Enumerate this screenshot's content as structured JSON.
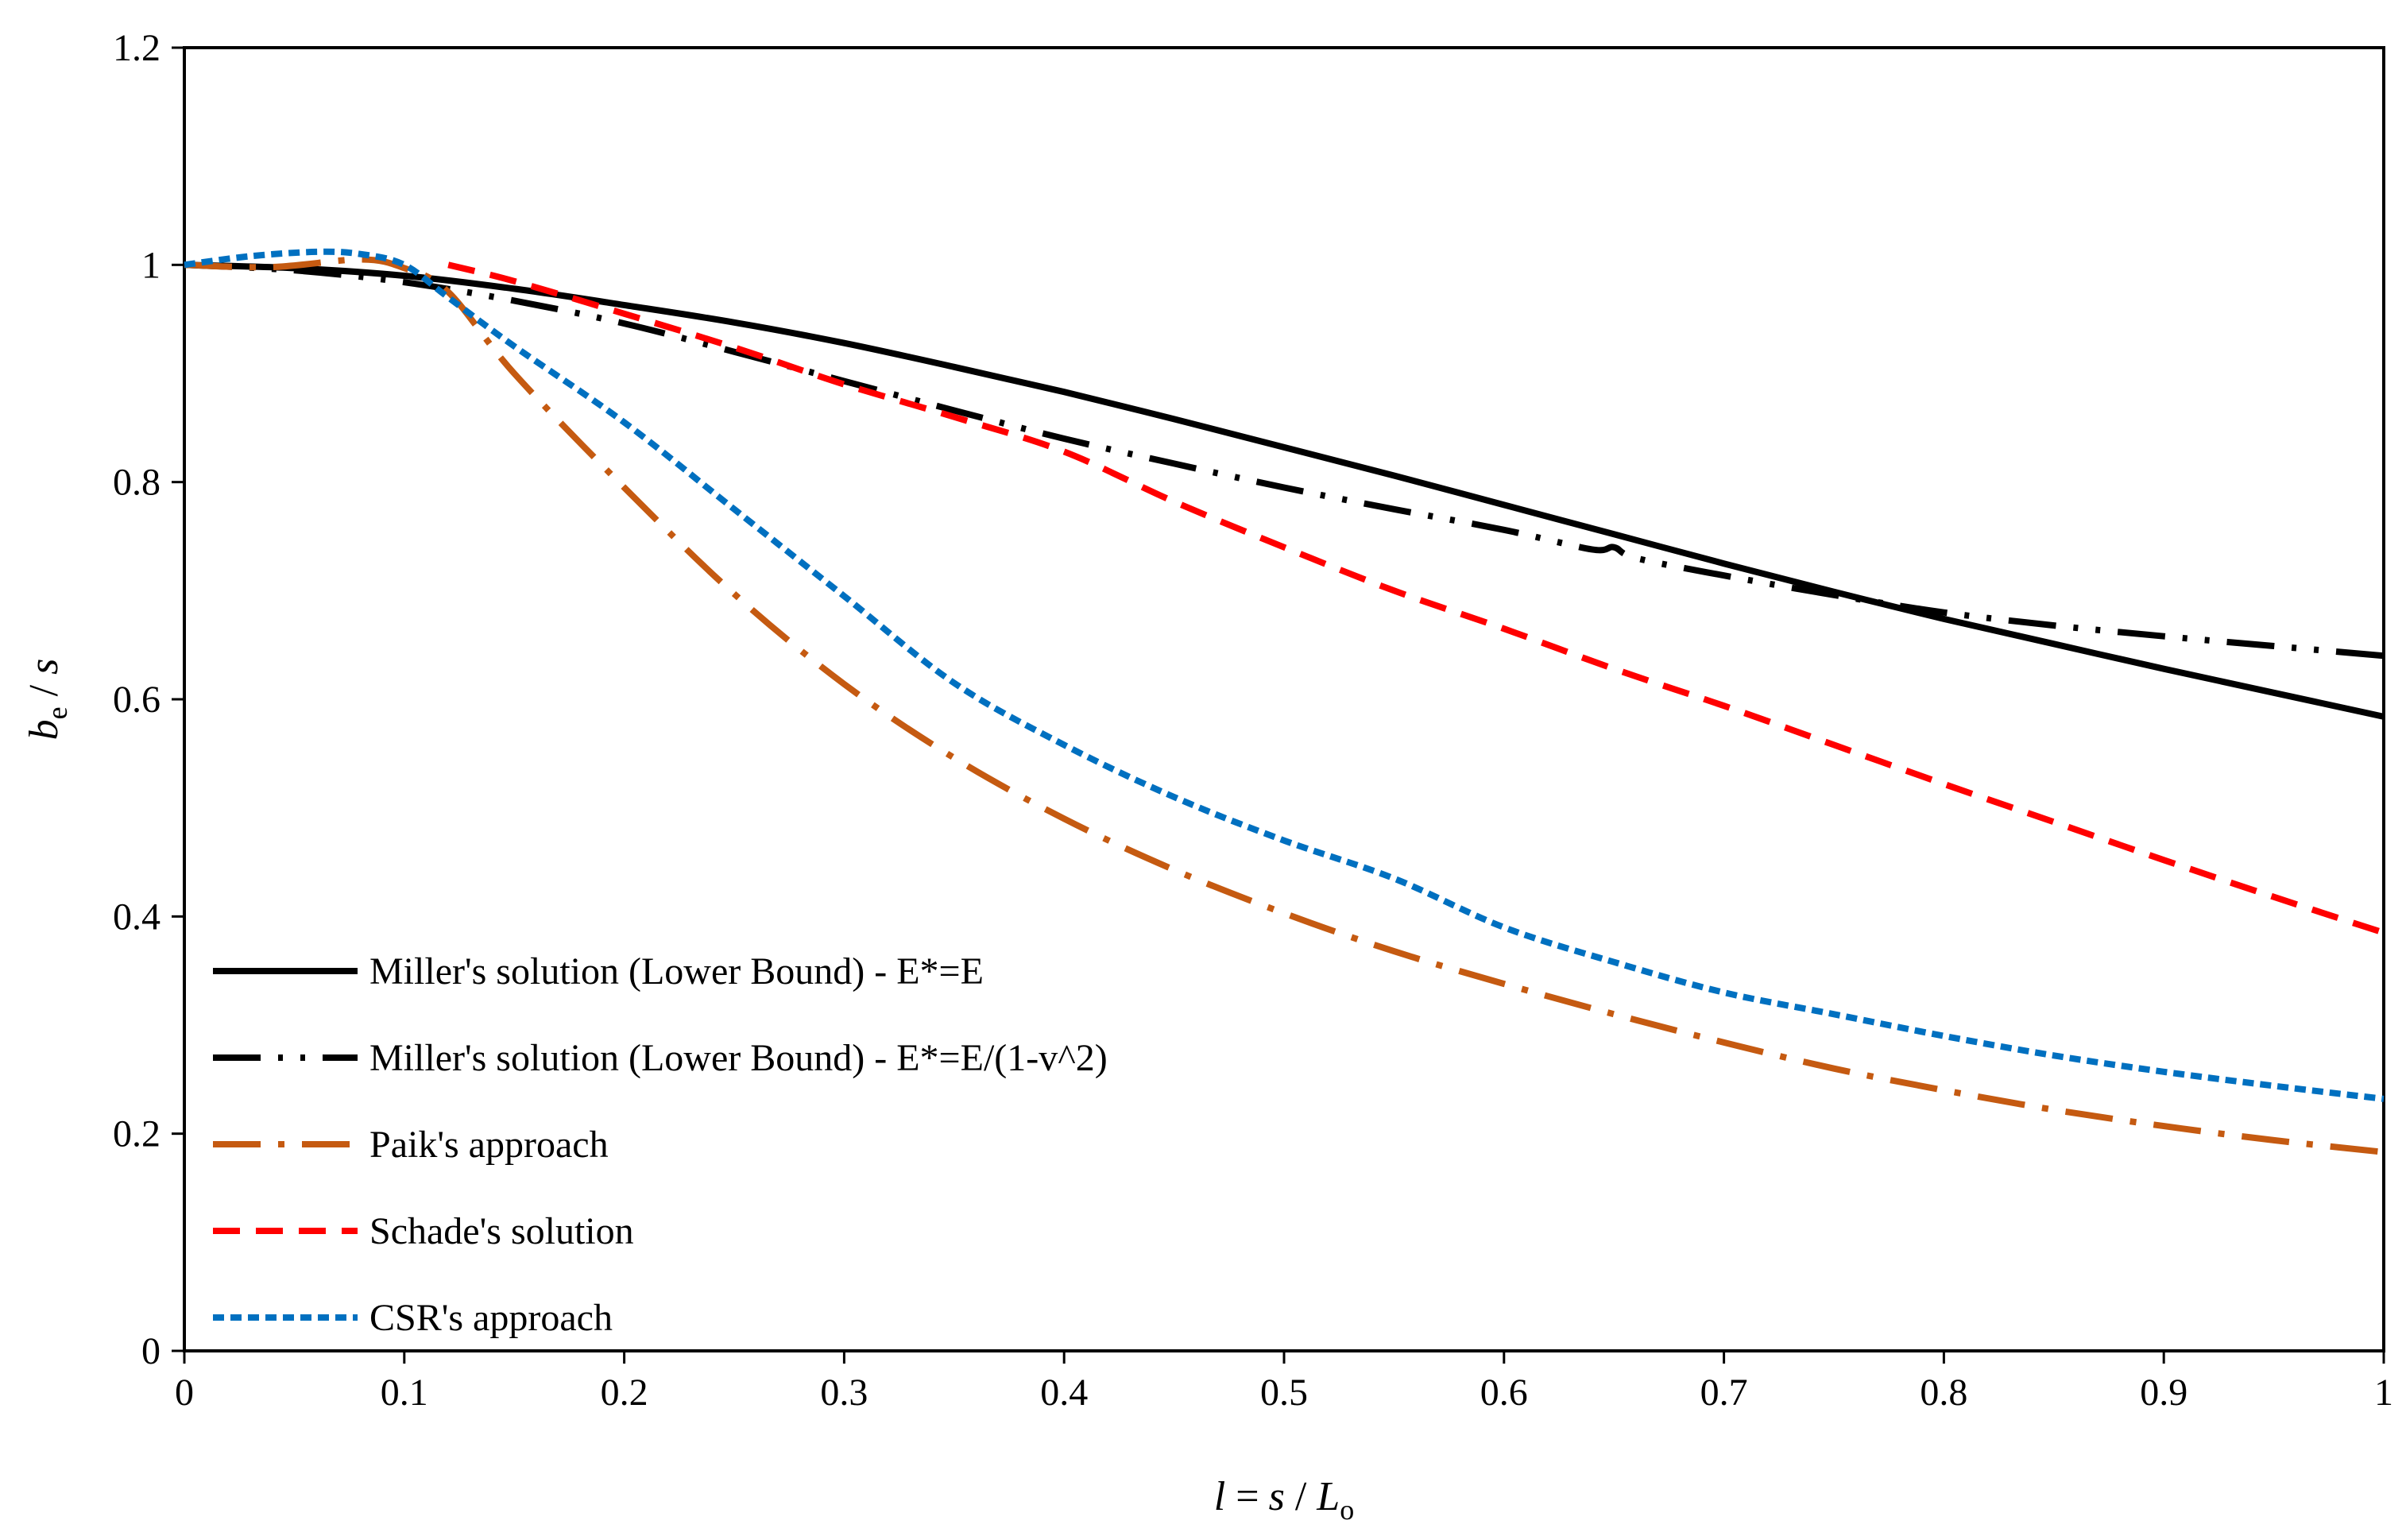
{
  "chart_data": {
    "type": "line",
    "title": "",
    "xlabel": "l = s / L_o",
    "ylabel": "b_e / s",
    "xlim": [
      0,
      1
    ],
    "ylim": [
      0,
      1.2
    ],
    "x_ticks": [
      0,
      0.1,
      0.2,
      0.3,
      0.4,
      0.5,
      0.6,
      0.7,
      0.8,
      0.9,
      1
    ],
    "x_tick_labels": [
      "0",
      "0.1",
      "0.2",
      "0.3",
      "0.4",
      "0.5",
      "0.6",
      "0.7",
      "0.8",
      "0.9",
      "1"
    ],
    "y_ticks": [
      0,
      0.2,
      0.4,
      0.6,
      0.8,
      1,
      1.2
    ],
    "y_tick_labels": [
      "0",
      "0.2",
      "0.4",
      "0.6",
      "0.8",
      "1",
      "1.2"
    ],
    "grid": false,
    "legend_position": "bottom-left",
    "axis_labels": {
      "x_italic_1": "l",
      "x_mid": " =",
      "x_italic_2": "s",
      "x_sep": " / ",
      "x_italic_3": "L",
      "x_sub": "o",
      "y_italic_1": "b",
      "y_sub": "e",
      "y_sep": " / ",
      "y_italic_2": "s"
    },
    "series": [
      {
        "name": "Miller's solution (Lower Bound) - E*=E",
        "color": "#000000",
        "style": "solid",
        "x": [
          0,
          0.05,
          0.1,
          0.15,
          0.2,
          0.25,
          0.3,
          0.35,
          0.4,
          0.45,
          0.5,
          0.55,
          0.6,
          0.65,
          0.7,
          0.75,
          0.8,
          0.85,
          0.9,
          0.95,
          1.0
        ],
        "values": [
          1.0,
          0.997,
          0.99,
          0.978,
          0.963,
          0.947,
          0.928,
          0.906,
          0.883,
          0.858,
          0.832,
          0.806,
          0.779,
          0.752,
          0.725,
          0.699,
          0.674,
          0.651,
          0.628,
          0.606,
          0.584
        ]
      },
      {
        "name": "Miller's solution (Lower Bound) - E*=E/(1-v^2)",
        "color": "#000000",
        "style": "dash-dot-dot",
        "x": [
          0,
          0.05,
          0.1,
          0.15,
          0.2,
          0.25,
          0.3,
          0.35,
          0.4,
          0.45,
          0.5,
          0.55,
          0.6,
          0.64,
          0.65,
          0.66,
          0.7,
          0.75,
          0.8,
          0.85,
          0.9,
          0.95,
          1.0
        ],
        "values": [
          1.0,
          0.995,
          0.984,
          0.967,
          0.946,
          0.92,
          0.893,
          0.866,
          0.84,
          0.817,
          0.795,
          0.775,
          0.756,
          0.738,
          0.74,
          0.73,
          0.714,
          0.696,
          0.68,
          0.668,
          0.658,
          0.649,
          0.64
        ]
      },
      {
        "name": "Paik's approach",
        "color": "#C55A11",
        "style": "dash-dot",
        "x": [
          0,
          0.04,
          0.08,
          0.1,
          0.12,
          0.15,
          0.2,
          0.25,
          0.3,
          0.35,
          0.4,
          0.45,
          0.5,
          0.55,
          0.6,
          0.65,
          0.7,
          0.75,
          0.8,
          0.85,
          0.9,
          0.95,
          1.0
        ],
        "values": [
          1.0,
          0.998,
          1.005,
          0.997,
          0.975,
          0.9,
          0.795,
          0.697,
          0.614,
          0.546,
          0.49,
          0.443,
          0.403,
          0.368,
          0.338,
          0.31,
          0.284,
          0.26,
          0.24,
          0.222,
          0.207,
          0.194,
          0.183
        ]
      },
      {
        "name": "Schade's solution",
        "color": "#FF0000",
        "style": "dashed",
        "x": [
          0.12,
          0.15,
          0.2,
          0.25,
          0.3,
          0.35,
          0.4,
          0.45,
          0.5,
          0.55,
          0.6,
          0.65,
          0.7,
          0.75,
          0.8,
          0.85,
          0.9,
          0.95,
          1.0
        ],
        "values": [
          1.0,
          0.985,
          0.955,
          0.924,
          0.89,
          0.86,
          0.828,
          0.782,
          0.74,
          0.7,
          0.665,
          0.628,
          0.594,
          0.558,
          0.522,
          0.487,
          0.452,
          0.418,
          0.385
        ]
      },
      {
        "name": "CSR's approach",
        "color": "#0070C0",
        "style": "dotted",
        "x": [
          0,
          0.03,
          0.06,
          0.08,
          0.1,
          0.12,
          0.15,
          0.2,
          0.25,
          0.3,
          0.35,
          0.4,
          0.45,
          0.5,
          0.55,
          0.6,
          0.65,
          0.7,
          0.75,
          0.8,
          0.85,
          0.9,
          0.95,
          1.0
        ],
        "values": [
          1.0,
          1.008,
          1.012,
          1.01,
          1.0,
          0.97,
          0.925,
          0.855,
          0.775,
          0.695,
          0.615,
          0.558,
          0.51,
          0.47,
          0.435,
          0.39,
          0.358,
          0.33,
          0.31,
          0.29,
          0.272,
          0.257,
          0.244,
          0.232
        ]
      }
    ]
  }
}
